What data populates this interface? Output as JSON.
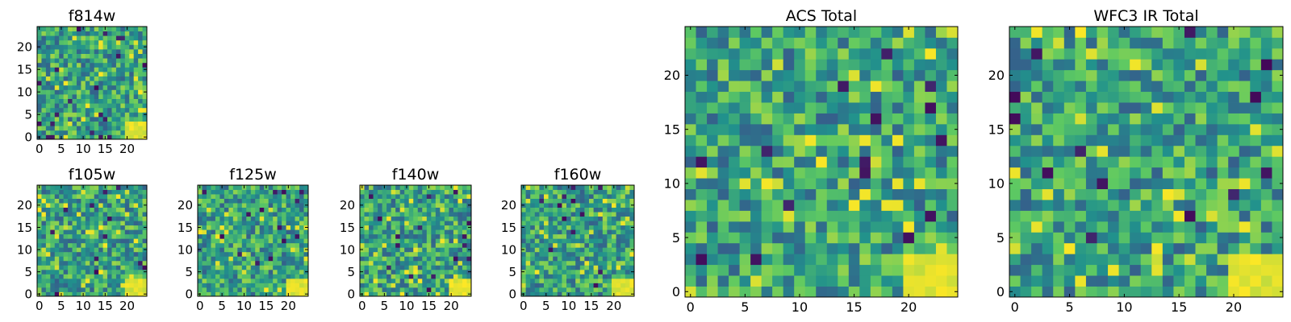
{
  "palette": {
    "viridis_stops": [
      "#440154",
      "#3b528b",
      "#21918c",
      "#5ec962",
      "#fde725"
    ],
    "frame": "#000000",
    "background": "#ffffff"
  },
  "chart_data": [
    {
      "type": "heatmap",
      "title": "f814w",
      "grid_size": [
        25,
        25
      ],
      "xlim": [
        0,
        24
      ],
      "ylim": [
        0,
        24
      ],
      "x_ticks": [
        0,
        5,
        10,
        15,
        20
      ],
      "y_ticks": [
        0,
        5,
        10,
        15,
        20
      ],
      "origin": "lower",
      "colormap": "viridis",
      "notes": "noisy pixel map, brighter toward lower-right corner"
    },
    {
      "type": "heatmap",
      "title": "f105w",
      "grid_size": [
        25,
        25
      ],
      "xlim": [
        0,
        24
      ],
      "ylim": [
        0,
        24
      ],
      "x_ticks": [
        0,
        5,
        10,
        15,
        20
      ],
      "y_ticks": [
        0,
        5,
        10,
        15,
        20
      ],
      "origin": "lower",
      "colormap": "viridis"
    },
    {
      "type": "heatmap",
      "title": "f125w",
      "grid_size": [
        25,
        25
      ],
      "xlim": [
        0,
        24
      ],
      "ylim": [
        0,
        24
      ],
      "x_ticks": [
        0,
        5,
        10,
        15,
        20
      ],
      "y_ticks": [
        0,
        5,
        10,
        15,
        20
      ],
      "origin": "lower",
      "colormap": "viridis"
    },
    {
      "type": "heatmap",
      "title": "f140w",
      "grid_size": [
        25,
        25
      ],
      "xlim": [
        0,
        24
      ],
      "ylim": [
        0,
        24
      ],
      "x_ticks": [
        0,
        5,
        10,
        15,
        20
      ],
      "y_ticks": [
        0,
        5,
        10,
        15,
        20
      ],
      "origin": "lower",
      "colormap": "viridis"
    },
    {
      "type": "heatmap",
      "title": "f160w",
      "grid_size": [
        25,
        25
      ],
      "xlim": [
        0,
        24
      ],
      "ylim": [
        0,
        24
      ],
      "x_ticks": [
        0,
        5,
        10,
        15,
        20
      ],
      "y_ticks": [
        0,
        5,
        10,
        15,
        20
      ],
      "origin": "lower",
      "colormap": "viridis"
    },
    {
      "type": "heatmap",
      "title": "ACS Total",
      "grid_size": [
        25,
        25
      ],
      "xlim": [
        0,
        24
      ],
      "ylim": [
        0,
        24
      ],
      "x_ticks": [
        0,
        5,
        10,
        15,
        20
      ],
      "y_ticks": [
        0,
        5,
        10,
        15,
        20
      ],
      "origin": "lower",
      "colormap": "viridis"
    },
    {
      "type": "heatmap",
      "title": "WFC3 IR Total",
      "grid_size": [
        25,
        25
      ],
      "xlim": [
        0,
        24
      ],
      "ylim": [
        0,
        24
      ],
      "x_ticks": [
        0,
        5,
        10,
        15,
        20
      ],
      "y_ticks": [
        0,
        5,
        10,
        15,
        20
      ],
      "origin": "lower",
      "colormap": "viridis"
    }
  ]
}
